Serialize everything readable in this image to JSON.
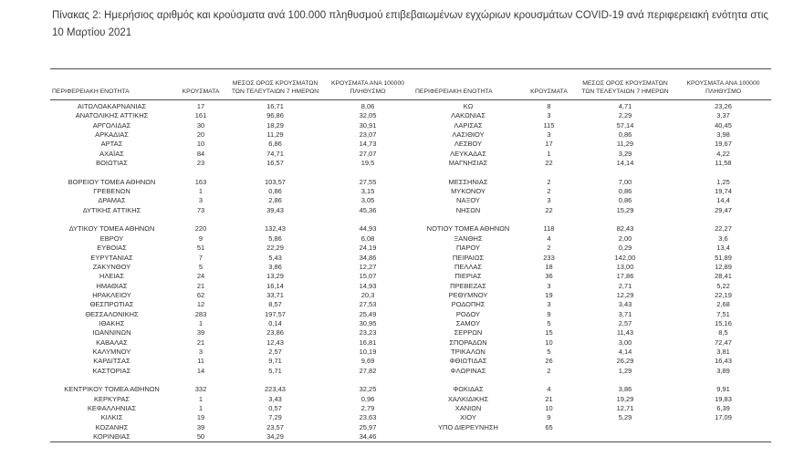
{
  "page": {
    "title": "Πίνακας 2:  Ημερήσιος αριθμός και κρούσματα ανά 100.000 πληθυσμού επιβεβαιωμένων εγχώριων κρουσμάτων COVID-19 ανά περιφερειακή ενότητα στις 10 Μαρτίου 2021"
  },
  "table": {
    "headers": {
      "region": "ΠΕΡΙΦΕΡΕΙΑΚΗ ΕΝΟΤΗΤΑ",
      "cases": "ΚΡΟΥΣΜΑΤΑ",
      "avg7": "ΜΕΣΟΣ ΟΡΟΣ ΚΡΟΥΣΜΑΤΩΝ ΤΩΝ ΤΕΛΕΥΤΑΙΩΝ 7 ΗΜΕΡΩΝ",
      "per100k": "ΚΡΟΥΣΜΑΤΑ ΑΝΑ 100000 ΠΛΗΘΥΣΜΟ"
    },
    "left_rows": [
      {
        "region": "ΑΙΤΩΛΟΑΚΑΡΝΑΝΙΑΣ",
        "cases": "17",
        "avg7": "16,71",
        "per100k": "8,06"
      },
      {
        "region": "ΑΝΑΤΟΛΙΚΗΣ ΑΤΤΙΚΗΣ",
        "cases": "161",
        "avg7": "96,86",
        "per100k": "32,05"
      },
      {
        "region": "ΑΡΓΟΛΙΔΑΣ",
        "cases": "30",
        "avg7": "18,29",
        "per100k": "30,91"
      },
      {
        "region": "ΑΡΚΑΔΙΑΣ",
        "cases": "20",
        "avg7": "11,29",
        "per100k": "23,07"
      },
      {
        "region": "ΑΡΤΑΣ",
        "cases": "10",
        "avg7": "6,86",
        "per100k": "14,73"
      },
      {
        "region": "ΑΧΑΪΑΣ",
        "cases": "84",
        "avg7": "74,71",
        "per100k": "27,07"
      },
      {
        "region": "ΒΟΙΩΤΙΑΣ",
        "cases": "23",
        "avg7": "16,57",
        "per100k": "19,5"
      },
      {
        "region": "",
        "cases": "",
        "avg7": "",
        "per100k": ""
      },
      {
        "region": "ΒΟΡΕΙΟΥ ΤΟΜΕΑ ΑΘΗΝΩΝ",
        "cases": "163",
        "avg7": "103,57",
        "per100k": "27,55"
      },
      {
        "region": "ΓΡΕΒΕΝΩΝ",
        "cases": "1",
        "avg7": "0,86",
        "per100k": "3,15"
      },
      {
        "region": "ΔΡΑΜΑΣ",
        "cases": "3",
        "avg7": "2,86",
        "per100k": "3,05"
      },
      {
        "region": "ΔΥΤΙΚΗΣ ΑΤΤΙΚΗΣ",
        "cases": "73",
        "avg7": "39,43",
        "per100k": "45,36"
      },
      {
        "region": "",
        "cases": "",
        "avg7": "",
        "per100k": ""
      },
      {
        "region": "ΔΥΤΙΚΟΥ ΤΟΜΕΑ ΑΘΗΝΩΝ",
        "cases": "220",
        "avg7": "132,43",
        "per100k": "44,93"
      },
      {
        "region": "ΕΒΡΟΥ",
        "cases": "9",
        "avg7": "5,86",
        "per100k": "6,08"
      },
      {
        "region": "ΕΥΒΟΙΑΣ",
        "cases": "51",
        "avg7": "22,29",
        "per100k": "24,19"
      },
      {
        "region": "ΕΥΡΥΤΑΝΙΑΣ",
        "cases": "7",
        "avg7": "5,43",
        "per100k": "34,86"
      },
      {
        "region": "ΖΑΚΥΝΘΟΥ",
        "cases": "5",
        "avg7": "3,86",
        "per100k": "12,27"
      },
      {
        "region": "ΗΛΕΙΑΣ",
        "cases": "24",
        "avg7": "13,29",
        "per100k": "15,07"
      },
      {
        "region": "ΗΜΑΘΙΑΣ",
        "cases": "21",
        "avg7": "16,14",
        "per100k": "14,93"
      },
      {
        "region": "ΗΡΑΚΛΕΙΟΥ",
        "cases": "62",
        "avg7": "33,71",
        "per100k": "20,3"
      },
      {
        "region": "ΘΕΣΠΡΩΤΙΑΣ",
        "cases": "12",
        "avg7": "8,57",
        "per100k": "27,53"
      },
      {
        "region": "ΘΕΣΣΑΛΟΝΙΚΗΣ",
        "cases": "283",
        "avg7": "197,57",
        "per100k": "25,49"
      },
      {
        "region": "ΙΘΑΚΗΣ",
        "cases": "1",
        "avg7": "0,14",
        "per100k": "30,95"
      },
      {
        "region": "ΙΩΑΝΝΙΝΩΝ",
        "cases": "39",
        "avg7": "23,86",
        "per100k": "23,23"
      },
      {
        "region": "ΚΑΒΑΛΑΣ",
        "cases": "21",
        "avg7": "12,43",
        "per100k": "16,81"
      },
      {
        "region": "ΚΑΛΥΜΝΟΥ",
        "cases": "3",
        "avg7": "2,57",
        "per100k": "10,19"
      },
      {
        "region": "ΚΑΡΔΙΤΣΑΣ",
        "cases": "11",
        "avg7": "9,71",
        "per100k": "9,69"
      },
      {
        "region": "ΚΑΣΤΟΡΙΑΣ",
        "cases": "14",
        "avg7": "5,71",
        "per100k": "27,82"
      },
      {
        "region": "",
        "cases": "",
        "avg7": "",
        "per100k": ""
      },
      {
        "region": "ΚΕΝΤΡΙΚΟΥ ΤΟΜΕΑ ΑΘΗΝΩΝ",
        "cases": "332",
        "avg7": "223,43",
        "per100k": "32,25"
      },
      {
        "region": "ΚΕΡΚΥΡΑΣ",
        "cases": "1",
        "avg7": "3,43",
        "per100k": "0,96"
      },
      {
        "region": "ΚΕΦΑΛΛΗΝΙΑΣ",
        "cases": "1",
        "avg7": "0,57",
        "per100k": "2,79"
      },
      {
        "region": "ΚΙΛΚΙΣ",
        "cases": "19",
        "avg7": "7,29",
        "per100k": "23,63"
      },
      {
        "region": "ΚΟΖΑΝΗΣ",
        "cases": "39",
        "avg7": "23,57",
        "per100k": "25,97"
      },
      {
        "region": "ΚΟΡΙΝΘΙΑΣ",
        "cases": "50",
        "avg7": "34,29",
        "per100k": "34,46"
      }
    ],
    "right_rows": [
      {
        "region": "ΚΩ",
        "cases": "8",
        "avg7": "4,71",
        "per100k": "23,26"
      },
      {
        "region": "ΛΑΚΩΝΙΑΣ",
        "cases": "3",
        "avg7": "2,29",
        "per100k": "3,37"
      },
      {
        "region": "ΛΑΡΙΣΑΣ",
        "cases": "115",
        "avg7": "57,14",
        "per100k": "40,45"
      },
      {
        "region": "ΛΑΣΙΘΙΟΥ",
        "cases": "3",
        "avg7": "0,86",
        "per100k": "3,98"
      },
      {
        "region": "ΛΕΣΒΟΥ",
        "cases": "17",
        "avg7": "11,29",
        "per100k": "19,67"
      },
      {
        "region": "ΛΕΥΚΑΔΑΣ",
        "cases": "1",
        "avg7": "3,29",
        "per100k": "4,22"
      },
      {
        "region": "ΜΑΓΝΗΣΙΑΣ",
        "cases": "22",
        "avg7": "14,14",
        "per100k": "11,58"
      },
      {
        "region": "",
        "cases": "",
        "avg7": "",
        "per100k": ""
      },
      {
        "region": "ΜΕΣΣΗΝΙΑΣ",
        "cases": "2",
        "avg7": "7,00",
        "per100k": "1,25"
      },
      {
        "region": "ΜΥΚΟΝΟΥ",
        "cases": "2",
        "avg7": "0,86",
        "per100k": "19,74"
      },
      {
        "region": "ΝΑΞΟΥ",
        "cases": "3",
        "avg7": "0,86",
        "per100k": "14,4"
      },
      {
        "region": "ΝΗΣΩΝ",
        "cases": "22",
        "avg7": "15,29",
        "per100k": "29,47"
      },
      {
        "region": "",
        "cases": "",
        "avg7": "",
        "per100k": ""
      },
      {
        "region": "ΝΟΤΙΟΥ ΤΟΜΕΑ ΑΘΗΝΩΝ",
        "cases": "118",
        "avg7": "82,43",
        "per100k": "22,27"
      },
      {
        "region": "ΞΑΝΘΗΣ",
        "cases": "4",
        "avg7": "2,00",
        "per100k": "3,6"
      },
      {
        "region": "ΠΑΡΟΥ",
        "cases": "2",
        "avg7": "0,29",
        "per100k": "13,4"
      },
      {
        "region": "ΠΕΙΡΑΙΩΣ",
        "cases": "233",
        "avg7": "142,00",
        "per100k": "51,89"
      },
      {
        "region": "ΠΕΛΛΑΣ",
        "cases": "18",
        "avg7": "13,00",
        "per100k": "12,89"
      },
      {
        "region": "ΠΙΕΡΙΑΣ",
        "cases": "36",
        "avg7": "17,86",
        "per100k": "28,41"
      },
      {
        "region": "ΠΡΕΒΕΖΑΣ",
        "cases": "3",
        "avg7": "2,71",
        "per100k": "5,22"
      },
      {
        "region": "ΡΕΘΥΜΝΟΥ",
        "cases": "19",
        "avg7": "12,29",
        "per100k": "22,19"
      },
      {
        "region": "ΡΟΔΟΠΗΣ",
        "cases": "3",
        "avg7": "3,43",
        "per100k": "2,68"
      },
      {
        "region": "ΡΟΔΟΥ",
        "cases": "9",
        "avg7": "3,71",
        "per100k": "7,51"
      },
      {
        "region": "ΣΑΜΟΥ",
        "cases": "5",
        "avg7": "2,57",
        "per100k": "15,16"
      },
      {
        "region": "ΣΕΡΡΩΝ",
        "cases": "15",
        "avg7": "11,43",
        "per100k": "8,5"
      },
      {
        "region": "ΣΠΟΡΑΔΩΝ",
        "cases": "10",
        "avg7": "3,00",
        "per100k": "72,47"
      },
      {
        "region": "ΤΡΙΚΑΛΩΝ",
        "cases": "5",
        "avg7": "4,14",
        "per100k": "3,81"
      },
      {
        "region": "ΦΘΙΩΤΙΔΑΣ",
        "cases": "26",
        "avg7": "26,29",
        "per100k": "16,43"
      },
      {
        "region": "ΦΛΩΡΙΝΑΣ",
        "cases": "2",
        "avg7": "1,29",
        "per100k": "3,89"
      },
      {
        "region": "",
        "cases": "",
        "avg7": "",
        "per100k": ""
      },
      {
        "region": "ΦΩΚΙΔΑΣ",
        "cases": "4",
        "avg7": "3,86",
        "per100k": "9,91"
      },
      {
        "region": "ΧΑΛΚΙΔΙΚΗΣ",
        "cases": "21",
        "avg7": "19,29",
        "per100k": "19,83"
      },
      {
        "region": "ΧΑΝΙΩΝ",
        "cases": "10",
        "avg7": "12,71",
        "per100k": "6,39"
      },
      {
        "region": "ΧΙΟΥ",
        "cases": "9",
        "avg7": "5,29",
        "per100k": "17,09"
      },
      {
        "region": "ΥΠΟ ΔΙΕΡΕΥΝΗΣΗ",
        "cases": "65",
        "avg7": "",
        "per100k": ""
      },
      {
        "region": "",
        "cases": "",
        "avg7": "",
        "per100k": ""
      }
    ]
  }
}
